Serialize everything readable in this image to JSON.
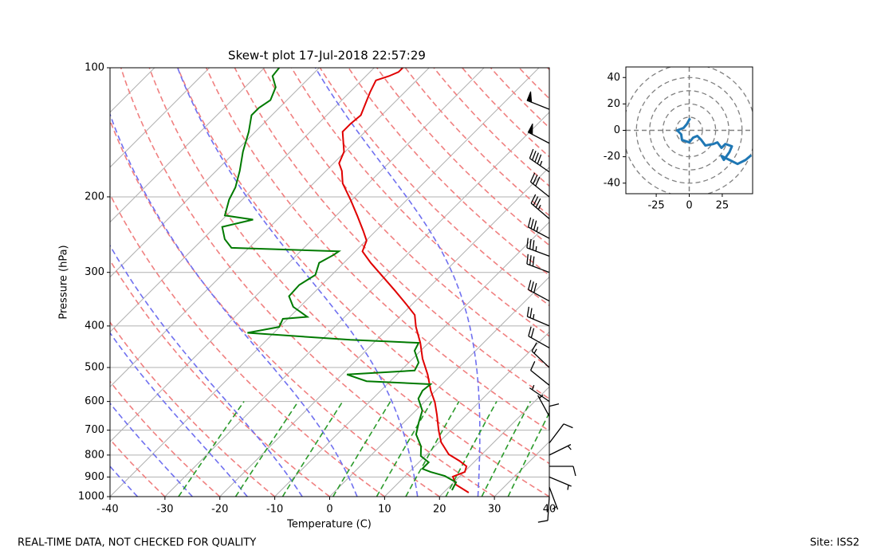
{
  "chart_data": {
    "type": "skewt",
    "title": "Skew-t plot 17-Jul-2018 22:57:29",
    "xlabel": "Temperature (C)",
    "ylabel": "Pressure (hPa)",
    "xlim": [
      -40,
      40
    ],
    "xticks": [
      -40,
      -30,
      -20,
      -10,
      0,
      10,
      20,
      30,
      40
    ],
    "ylim": [
      1000,
      100
    ],
    "yticks": [
      100,
      200,
      300,
      400,
      500,
      600,
      700,
      800,
      900,
      1000
    ],
    "log_scale": true,
    "grid": true,
    "isotherms": [
      -120,
      -110,
      -100,
      -90,
      -80,
      -70,
      -60,
      -50,
      -40,
      -30,
      -20,
      -10,
      0,
      10,
      20,
      30,
      40
    ],
    "dry_adiabats": [
      -30,
      -20,
      -10,
      0,
      10,
      20,
      30,
      40,
      50,
      60,
      70,
      80,
      90,
      100,
      110,
      120,
      130,
      140,
      150,
      160,
      170,
      180,
      190,
      200
    ],
    "moist_adiabats": [
      -35,
      -25,
      -15,
      -5,
      5,
      16,
      27
    ],
    "mixing_ratios": [
      0.4,
      1,
      2,
      4,
      7,
      10,
      16,
      24,
      32
    ],
    "temperature": {
      "color": "#e00000",
      "p": [
        978.8,
        937.8,
        898.5,
        875.7,
        850,
        825,
        797,
        747,
        701,
        644,
        603,
        566,
        519,
        477,
        438,
        402,
        377,
        353,
        331,
        304,
        285,
        268,
        253,
        240,
        221,
        203,
        186,
        174,
        167,
        157,
        141,
        135,
        129,
        121,
        114,
        107,
        104.6,
        102.3,
        100
      ],
      "t": [
        24.6,
        20.8,
        18.8,
        20.1,
        19.4,
        17.1,
        14.0,
        10.4,
        7.8,
        4.6,
        2.0,
        -0.9,
        -4.4,
        -8.2,
        -11.5,
        -15.2,
        -17.6,
        -21.6,
        -25.6,
        -31,
        -35.1,
        -38.7,
        -39.9,
        -42.3,
        -46.2,
        -50.3,
        -54.7,
        -57.1,
        -59.0,
        -60.2,
        -64.1,
        -64.1,
        -63.8,
        -65.1,
        -66.3,
        -67.4,
        -65.8,
        -64.8,
        -64.8
      ]
    },
    "dewpoint": {
      "color": "#007a00",
      "p": [
        966,
        926,
        895,
        876,
        861,
        832,
        804,
        764,
        716,
        671,
        630,
        591,
        566,
        547,
        538,
        519,
        508,
        487,
        457,
        438,
        431,
        415,
        402,
        385,
        381,
        361,
        341,
        321,
        304,
        285,
        273,
        268,
        263,
        251,
        235,
        226,
        221,
        203,
        190,
        174,
        157,
        141,
        129,
        124,
        119,
        111,
        104.6,
        100
      ],
      "t": [
        21.1,
        20.4,
        17.2,
        13.9,
        11.8,
        11.8,
        9.2,
        7.5,
        4.4,
        2.7,
        1.2,
        -1.7,
        -2.4,
        -2.1,
        -14.3,
        -19.1,
        -7.5,
        -8.2,
        -11.1,
        -11.8,
        -24.8,
        -44.8,
        -40.1,
        -40.9,
        -36.8,
        -41.2,
        -43.9,
        -44.1,
        -43.0,
        -44.5,
        -43.3,
        -43.0,
        -63.2,
        -66.0,
        -68.7,
        -64.4,
        -70.3,
        -72.4,
        -73.5,
        -75.7,
        -78.6,
        -81.2,
        -83.7,
        -83.7,
        -83.0,
        -84.4,
        -87.0,
        -87.3
      ]
    },
    "wind": {
      "p": [
        1000,
        950,
        900,
        850,
        800,
        750,
        700,
        650,
        600,
        550,
        500,
        450,
        400,
        350,
        300,
        275,
        250,
        225,
        200,
        175,
        150,
        125
      ],
      "u": [
        0.6,
        -1.8,
        -4.3,
        -9.1,
        -6.1,
        -5.5,
        0,
        3,
        6.1,
        9.1,
        12.2,
        18.3,
        21.3,
        24.4,
        27.4,
        32.3,
        30.5,
        26.2,
        24.4,
        36.6,
        42.7,
        47
      ],
      "v": [
        9.1,
        4.8,
        1.8,
        0,
        -3.0,
        -7.3,
        -9.1,
        -5.5,
        -4.2,
        -7.3,
        -11.5,
        -10.3,
        -9.1,
        -13.3,
        -10.3,
        -12.1,
        -16.4,
        -22.4,
        -19.4,
        -25.5,
        -22.4,
        -18.8
      ]
    },
    "hodograph": {
      "color": "#1f77b4",
      "xlim": [
        -48,
        48
      ],
      "ylim": [
        -48,
        48
      ],
      "xticks": [
        -25,
        0,
        25
      ],
      "yticks": [
        -40,
        -20,
        0,
        20,
        40
      ],
      "rings": [
        10,
        20,
        30,
        40,
        50
      ]
    },
    "footer_left": "REAL-TIME DATA, NOT CHECKED FOR QUALITY",
    "footer_right": "Site: ISS2"
  }
}
